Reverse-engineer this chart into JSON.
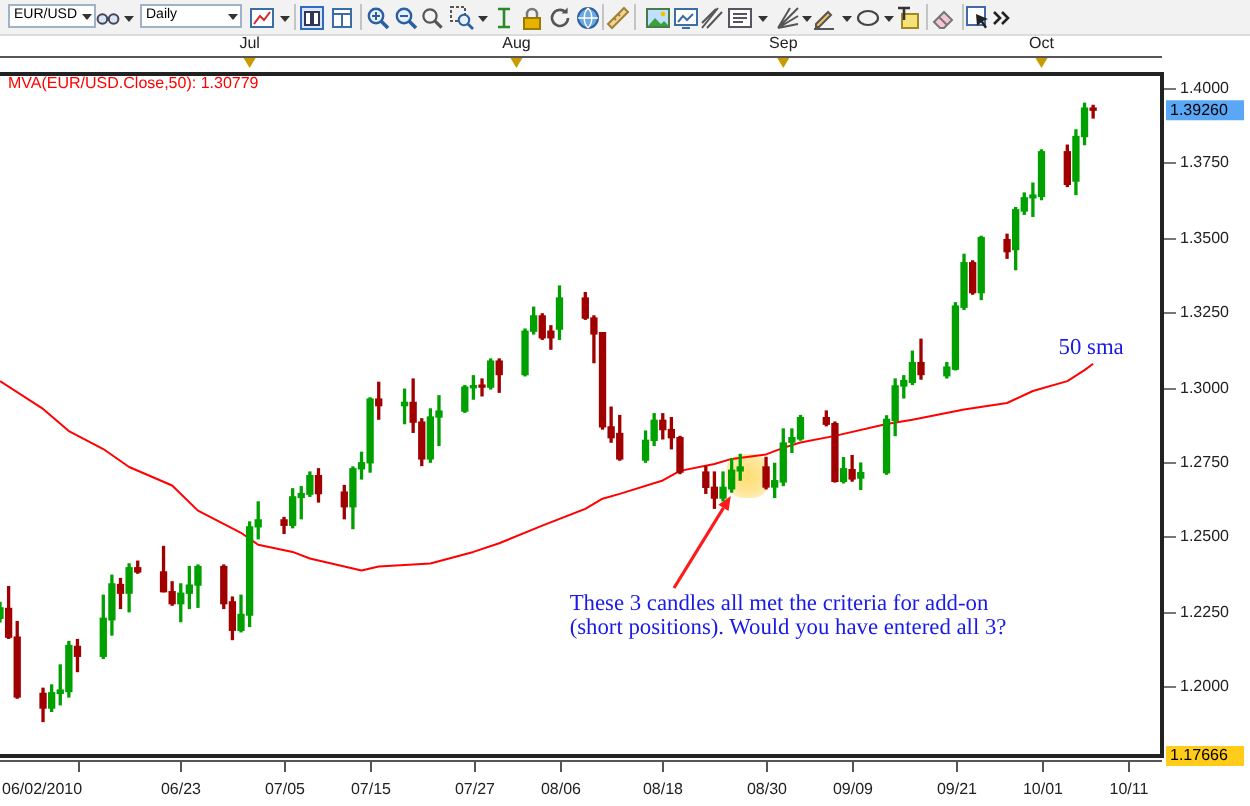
{
  "chart_data": {
    "type": "candlestick",
    "x": [
      "2010-06-02",
      "2010-06-03",
      "2010-06-04",
      "2010-06-07",
      "2010-06-08",
      "2010-06-09",
      "2010-06-10",
      "2010-06-11",
      "2010-06-14",
      "2010-06-15",
      "2010-06-16",
      "2010-06-17",
      "2010-06-18",
      "2010-06-21",
      "2010-06-22",
      "2010-06-23",
      "2010-06-24",
      "2010-06-25",
      "2010-06-28",
      "2010-06-29",
      "2010-06-30",
      "2010-07-01",
      "2010-07-02",
      "2010-07-05",
      "2010-07-06",
      "2010-07-07",
      "2010-07-08",
      "2010-07-09",
      "2010-07-12",
      "2010-07-13",
      "2010-07-14",
      "2010-07-15",
      "2010-07-16",
      "2010-07-19",
      "2010-07-20",
      "2010-07-21",
      "2010-07-22",
      "2010-07-23",
      "2010-07-26",
      "2010-07-27",
      "2010-07-28",
      "2010-07-29",
      "2010-07-30",
      "2010-08-02",
      "2010-08-03",
      "2010-08-04",
      "2010-08-05",
      "2010-08-06",
      "2010-08-09",
      "2010-08-10",
      "2010-08-11",
      "2010-08-12",
      "2010-08-13",
      "2010-08-16",
      "2010-08-17",
      "2010-08-18",
      "2010-08-19",
      "2010-08-20",
      "2010-08-23",
      "2010-08-24",
      "2010-08-25",
      "2010-08-26",
      "2010-08-27",
      "2010-08-30",
      "2010-08-31",
      "2010-09-01",
      "2010-09-02",
      "2010-09-03",
      "2010-09-06",
      "2010-09-07",
      "2010-09-08",
      "2010-09-09",
      "2010-09-10",
      "2010-09-13",
      "2010-09-14",
      "2010-09-15",
      "2010-09-16",
      "2010-09-17",
      "2010-09-20",
      "2010-09-21",
      "2010-09-22",
      "2010-09-23",
      "2010-09-24",
      "2010-09-27",
      "2010-09-28",
      "2010-09-29",
      "2010-09-30",
      "2010-10-01",
      "2010-10-04",
      "2010-10-05",
      "2010-10-06",
      "2010-10-07"
    ],
    "ohlc": [
      [
        1.2227,
        1.228,
        1.2215,
        1.2262
      ],
      [
        1.226,
        1.2333,
        1.216,
        1.2164
      ],
      [
        1.2164,
        1.2216,
        1.196,
        1.1964
      ],
      [
        1.1976,
        1.1993,
        1.1882,
        1.1927
      ],
      [
        1.1927,
        1.2004,
        1.1916,
        1.1978
      ],
      [
        1.1976,
        1.2071,
        1.1938,
        1.1987
      ],
      [
        1.1982,
        1.2149,
        1.1964,
        1.2136
      ],
      [
        1.2133,
        1.2156,
        1.2049,
        1.21
      ],
      [
        1.21,
        1.2304,
        1.2093,
        1.2227
      ],
      [
        1.2222,
        1.2371,
        1.2171,
        1.2342
      ],
      [
        1.234,
        1.236,
        1.226,
        1.2311
      ],
      [
        1.2311,
        1.2409,
        1.2249,
        1.2396
      ],
      [
        1.2396,
        1.2418,
        1.2378,
        1.2382
      ],
      [
        1.2382,
        1.2467,
        1.2316,
        1.2316
      ],
      [
        1.2316,
        1.2349,
        1.2271,
        1.2276
      ],
      [
        1.2276,
        1.2342,
        1.2216,
        1.2311
      ],
      [
        1.2311,
        1.24,
        1.226,
        1.2338
      ],
      [
        1.2338,
        1.2405,
        1.2264,
        1.24
      ],
      [
        1.24,
        1.2405,
        1.226,
        1.2276
      ],
      [
        1.2282,
        1.2298,
        1.2156,
        1.2187
      ],
      [
        1.2187,
        1.2304,
        1.2182,
        1.224
      ],
      [
        1.2238,
        1.2549,
        1.22,
        1.2533
      ],
      [
        1.2533,
        1.2616,
        1.2493,
        1.2556
      ],
      [
        1.2556,
        1.2564,
        1.2511,
        1.2538
      ],
      [
        1.2538,
        1.266,
        1.253,
        1.2633
      ],
      [
        1.2631,
        1.2667,
        1.256,
        1.2644
      ],
      [
        1.2642,
        1.2716,
        1.2635,
        1.2704
      ],
      [
        1.2704,
        1.2727,
        1.2616,
        1.2644
      ],
      [
        1.2649,
        1.2671,
        1.256,
        1.26
      ],
      [
        1.26,
        1.2733,
        1.2527,
        1.2727
      ],
      [
        1.2727,
        1.2782,
        1.2693,
        1.2747
      ],
      [
        1.2747,
        1.2964,
        1.2716,
        1.296
      ],
      [
        1.296,
        1.3016,
        1.2893,
        1.2938
      ],
      [
        1.2938,
        1.2993,
        1.2878,
        1.2949
      ],
      [
        1.2949,
        1.3027,
        1.2849,
        1.2883
      ],
      [
        1.2883,
        1.2894,
        1.2738,
        1.276
      ],
      [
        1.276,
        1.2927,
        1.2749,
        1.29
      ],
      [
        1.29,
        1.2971,
        1.2805,
        1.292
      ],
      [
        1.292,
        1.3005,
        1.2916,
        1.3
      ],
      [
        1.2998,
        1.3038,
        1.296,
        1.3005
      ],
      [
        1.3005,
        1.3027,
        1.2971,
        1.3
      ],
      [
        1.3,
        1.3094,
        1.2994,
        1.3087
      ],
      [
        1.3087,
        1.3094,
        1.2983,
        1.3042
      ],
      [
        1.3042,
        1.3194,
        1.3038,
        1.3187
      ],
      [
        1.3187,
        1.3267,
        1.3178,
        1.3238
      ],
      [
        1.3238,
        1.3245,
        1.316,
        1.3165
      ],
      [
        1.3187,
        1.3205,
        1.3127,
        1.3165
      ],
      [
        1.3194,
        1.3338,
        1.316,
        1.3298
      ],
      [
        1.3298,
        1.3316,
        1.3227,
        1.3231
      ],
      [
        1.3231,
        1.3238,
        1.3082,
        1.3178
      ],
      [
        1.3182,
        1.3182,
        1.286,
        1.2867
      ],
      [
        1.2867,
        1.2933,
        1.2816,
        1.2831
      ],
      [
        1.2845,
        1.2905,
        1.2756,
        1.276
      ],
      [
        1.2756,
        1.2853,
        1.2749,
        1.2822
      ],
      [
        1.2822,
        1.2911,
        1.2805,
        1.2889
      ],
      [
        1.2889,
        1.2911,
        1.2827,
        1.2858
      ],
      [
        1.2858,
        1.2898,
        1.2794,
        1.2831
      ],
      [
        1.2831,
        1.2835,
        1.2711,
        1.2716
      ],
      [
        1.2716,
        1.2734,
        1.2645,
        1.2665
      ],
      [
        1.2665,
        1.2716,
        1.2595,
        1.2629
      ],
      [
        1.2629,
        1.2716,
        1.262,
        1.2665
      ],
      [
        1.266,
        1.276,
        1.2649,
        1.2722
      ],
      [
        1.272,
        1.2775,
        1.2689,
        1.2733
      ],
      [
        1.2733,
        1.2765,
        1.266,
        1.2666
      ],
      [
        1.2666,
        1.2745,
        1.2631,
        1.2687
      ],
      [
        1.2683,
        1.286,
        1.2671,
        1.2813
      ],
      [
        1.2816,
        1.286,
        1.2782,
        1.2831
      ],
      [
        1.2827,
        1.2905,
        1.2823,
        1.2898
      ],
      [
        1.2898,
        1.292,
        1.2871,
        1.2876
      ],
      [
        1.2878,
        1.2883,
        1.2683,
        1.2685
      ],
      [
        1.2685,
        1.2764,
        1.268,
        1.2727
      ],
      [
        1.2724,
        1.2771,
        1.2686,
        1.2693
      ],
      [
        1.2696,
        1.2746,
        1.2658,
        1.2714
      ],
      [
        1.2714,
        1.2904,
        1.2709,
        1.2892
      ],
      [
        1.2889,
        1.3027,
        1.2838,
        1.3004
      ],
      [
        1.3004,
        1.3038,
        1.2964,
        1.3022
      ],
      [
        1.3016,
        1.312,
        1.3009,
        1.3082
      ],
      [
        1.3082,
        1.316,
        1.3027,
        1.3042
      ],
      [
        1.3038,
        1.3082,
        1.3031,
        1.3067
      ],
      [
        1.306,
        1.3282,
        1.3058,
        1.3271
      ],
      [
        1.3267,
        1.3444,
        1.326,
        1.3416
      ],
      [
        1.3416,
        1.3422,
        1.3311,
        1.3316
      ],
      [
        1.3316,
        1.3504,
        1.3293,
        1.35
      ],
      [
        1.3493,
        1.3511,
        1.3431,
        1.3453
      ],
      [
        1.346,
        1.36,
        1.3393,
        1.3593
      ],
      [
        1.3589,
        1.3649,
        1.3578,
        1.3633
      ],
      [
        1.3633,
        1.3682,
        1.3571,
        1.3642
      ],
      [
        1.3638,
        1.3793,
        1.3627,
        1.3787
      ],
      [
        1.3787,
        1.3809,
        1.3671,
        1.3678
      ],
      [
        1.3689,
        1.386,
        1.3644,
        1.3838
      ],
      [
        1.3838,
        1.3949,
        1.3811,
        1.3933
      ],
      [
        1.3933,
        1.3942,
        1.39,
        1.3926
      ]
    ],
    "colors": [
      "#00a000",
      "#a00000",
      "#a00000",
      "#a00000",
      "#00a000",
      "#00a000",
      "#00a000",
      "#a00000",
      "#00a000",
      "#00a000",
      "#a00000",
      "#00a000",
      "#a00000",
      "#a00000",
      "#a00000",
      "#00a000",
      "#00a000",
      "#00a000",
      "#a00000",
      "#a00000",
      "#00a000",
      "#00a000",
      "#00a000",
      "#a00000",
      "#00a000",
      "#00a000",
      "#00a000",
      "#a00000",
      "#a00000",
      "#00a000",
      "#00a000",
      "#00a000",
      "#a00000",
      "#00a000",
      "#a00000",
      "#a00000",
      "#00a000",
      "#00a000",
      "#00a000",
      "#00a000",
      "#a00000",
      "#00a000",
      "#a00000",
      "#00a000",
      "#00a000",
      "#a00000",
      "#a00000",
      "#00a000",
      "#a00000",
      "#a00000",
      "#a00000",
      "#a00000",
      "#a00000",
      "#00a000",
      "#00a000",
      "#a00000",
      "#a00000",
      "#a00000",
      "#a00000",
      "#a00000",
      "#00a000",
      "#00a000",
      "#00a000",
      "#a00000",
      "#00a000",
      "#00a000",
      "#00a000",
      "#00a000",
      "#a00000",
      "#a00000",
      "#00a000",
      "#a00000",
      "#00a000",
      "#00a000",
      "#00a000",
      "#00a000",
      "#00a000",
      "#a00000",
      "#00a000",
      "#00a000",
      "#00a000",
      "#a00000",
      "#00a000",
      "#a00000",
      "#00a000",
      "#00a000",
      "#00a000",
      "#00a000",
      "#a00000",
      "#00a000",
      "#00a000",
      "#a00000"
    ],
    "series": [
      {
        "type": "line",
        "name": "MVA(EUR/USD.Close,50): 1.30779",
        "color": "#ff0000",
        "x": [
          "2010-06-02",
          "2010-06-07",
          "2010-06-10",
          "2010-06-14",
          "2010-06-17",
          "2010-06-22",
          "2010-06-25",
          "2010-06-30",
          "2010-07-02",
          "2010-07-06",
          "2010-07-08",
          "2010-07-12",
          "2010-07-14",
          "2010-07-16",
          "2010-07-19",
          "2010-07-22",
          "2010-07-27",
          "2010-07-30",
          "2010-08-04",
          "2010-08-09",
          "2010-08-11",
          "2010-08-13",
          "2010-08-18",
          "2010-08-20",
          "2010-08-24",
          "2010-08-26",
          "2010-08-30",
          "2010-09-01",
          "2010-09-03",
          "2010-09-07",
          "2010-09-13",
          "2010-09-16",
          "2010-09-22",
          "2010-09-27",
          "2010-09-30",
          "2010-10-04",
          "2010-10-06",
          "2010-10-07"
        ],
        "values": [
          1.302,
          1.2927,
          1.2853,
          1.2793,
          1.2733,
          1.2671,
          1.2587,
          1.2513,
          1.2473,
          1.2449,
          1.2427,
          1.24,
          1.2387,
          1.24,
          1.2405,
          1.241,
          1.2449,
          1.2478,
          1.2537,
          1.2593,
          1.2627,
          1.2643,
          1.2688,
          1.272,
          1.2743,
          1.276,
          1.2775,
          1.2797,
          1.2815,
          1.2837,
          1.2877,
          1.2891,
          1.2925,
          1.2947,
          1.2987,
          1.302,
          1.3057,
          1.3078
        ]
      }
    ],
    "xlim": [
      "2010-06-02",
      "2010-10-15"
    ],
    "xticks": [
      {
        "value": "2010-06-11",
        "label": null
      },
      {
        "value": "2010-06-23",
        "label": "06/23"
      },
      {
        "value": "2010-07-05",
        "label": "07/05"
      },
      {
        "value": "2010-07-15",
        "label": "07/15"
      },
      {
        "value": "2010-07-27",
        "label": "07/27"
      },
      {
        "value": "2010-08-06",
        "label": "08/06"
      },
      {
        "value": "2010-08-18",
        "label": "08/18"
      },
      {
        "value": "2010-08-30",
        "label": "08/30"
      },
      {
        "value": "2010-09-09",
        "label": "09/09"
      },
      {
        "value": "2010-09-21",
        "label": "09/21"
      },
      {
        "value": "2010-10-01",
        "label": "10/01"
      },
      {
        "value": "2010-10-11",
        "label": "10/11"
      }
    ],
    "x2lim": [
      "2010-06-02",
      "2010-10-15"
    ],
    "x2ticks": [
      {
        "value": "2010-07-01",
        "label": "Jul"
      },
      {
        "value": "2010-08-01",
        "label": "Aug"
      },
      {
        "value": "2010-09-01",
        "label": "Sep"
      },
      {
        "value": "2010-10-01",
        "label": "Oct"
      }
    ],
    "ylim": [
      1.17666,
      1.4047
    ],
    "yticks": [
      {
        "value": 1.4,
        "label": "1.4000"
      },
      {
        "value": 1.375,
        "label": "1.3750"
      },
      {
        "value": 1.35,
        "label": "1.3500"
      },
      {
        "value": 1.325,
        "label": "1.3250"
      },
      {
        "value": 1.3,
        "label": "1.3000"
      },
      {
        "value": 1.275,
        "label": "1.2750"
      },
      {
        "value": 1.25,
        "label": "1.2500"
      },
      {
        "value": 1.225,
        "label": "1.2250"
      },
      {
        "value": 1.2,
        "label": "1.2000"
      }
    ],
    "legend": "top left",
    "annotations": [
      "EUR/USD",
      "Daily",
      "06/02/2010",
      "1.39260",
      "1.17666",
      {
        "text": "These 3 candles all met the criteria for add-on (short positions). Would you have entered all 3?",
        "x": "2010-08-26",
        "y": 1.2649
      },
      {
        "text": "50 sma",
        "x": "2010-10-07",
        "y": 1.3078
      }
    ]
  }
}
